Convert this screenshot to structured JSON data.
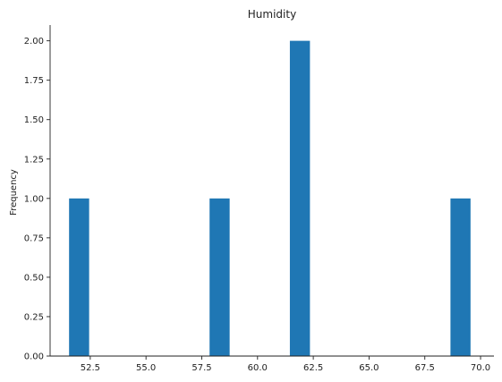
{
  "chart_data": {
    "type": "bar",
    "title": "Humidity",
    "xlabel": "",
    "ylabel": "Frequency",
    "bars": [
      {
        "x0": 51.55,
        "x1": 52.45,
        "count": 1
      },
      {
        "x0": 57.85,
        "x1": 58.75,
        "count": 1
      },
      {
        "x0": 61.45,
        "x1": 62.35,
        "count": 2
      },
      {
        "x0": 68.65,
        "x1": 69.55,
        "count": 1
      }
    ],
    "xlim": [
      50.7,
      70.6
    ],
    "ylim": [
      0,
      2.1
    ],
    "xticks": [
      "52.5",
      "55.0",
      "57.5",
      "60.0",
      "62.5",
      "65.0",
      "67.5",
      "70.0"
    ],
    "yticks": [
      "0.00",
      "0.25",
      "0.50",
      "0.75",
      "1.00",
      "1.25",
      "1.50",
      "1.75",
      "2.00"
    ],
    "bar_color": "#1f77b4",
    "grid": false,
    "legend": "none"
  }
}
